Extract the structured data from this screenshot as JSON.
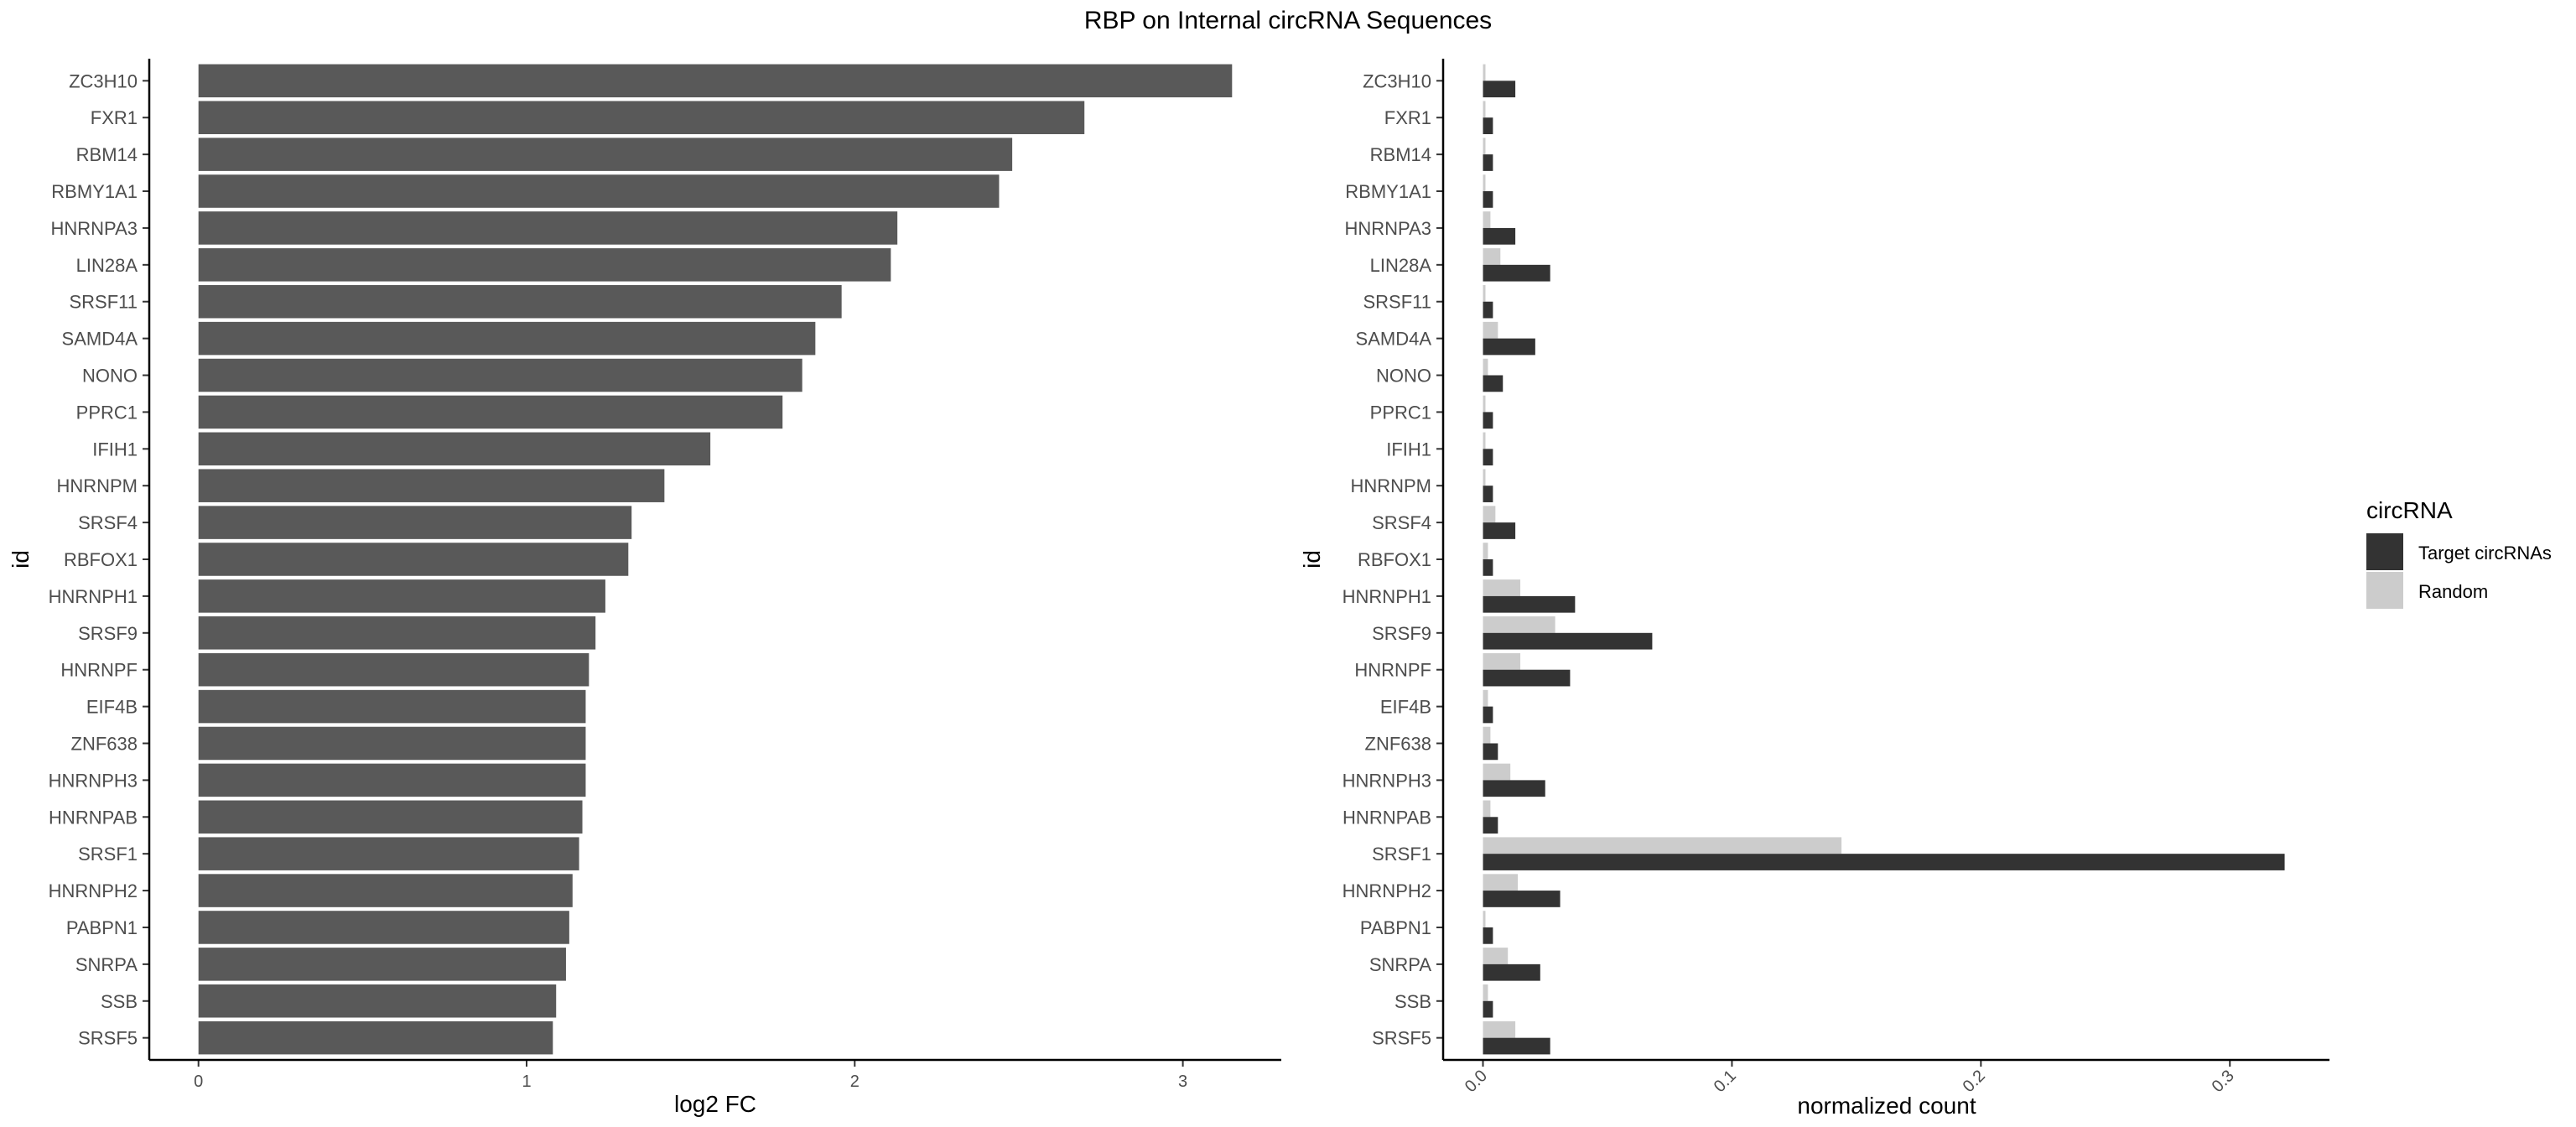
{
  "title": "RBP on Internal circRNA Sequences",
  "chart_data": [
    {
      "type": "bar",
      "orientation": "horizontal",
      "xlabel": "log2 FC",
      "ylabel": "id",
      "xlim": [
        -0.15,
        3.3
      ],
      "xticks": [
        "0",
        "1",
        "2",
        "3"
      ],
      "grid": false,
      "categories": [
        "ZC3H10",
        "FXR1",
        "RBM14",
        "RBMY1A1",
        "HNRNPA3",
        "LIN28A",
        "SRSF11",
        "SAMD4A",
        "NONO",
        "PPRC1",
        "IFIH1",
        "HNRNPM",
        "SRSF4",
        "RBFOX1",
        "HNRNPH1",
        "SRSF9",
        "HNRNPF",
        "EIF4B",
        "ZNF638",
        "HNRNPH3",
        "HNRNPAB",
        "SRSF1",
        "HNRNPH2",
        "PABPN1",
        "SNRPA",
        "SSB",
        "SRSF5"
      ],
      "values": [
        3.15,
        2.7,
        2.48,
        2.44,
        2.13,
        2.11,
        1.96,
        1.88,
        1.84,
        1.78,
        1.56,
        1.42,
        1.32,
        1.31,
        1.24,
        1.21,
        1.19,
        1.18,
        1.18,
        1.18,
        1.17,
        1.16,
        1.14,
        1.13,
        1.12,
        1.09,
        1.08
      ],
      "color": "#595959"
    },
    {
      "type": "bar",
      "orientation": "horizontal",
      "xlabel": "normalized count",
      "ylabel": "id",
      "xlim": [
        -0.016,
        0.34
      ],
      "xticks": [
        "0.0",
        "0.1",
        "0.2",
        "0.3"
      ],
      "grid": false,
      "categories": [
        "ZC3H10",
        "FXR1",
        "RBM14",
        "RBMY1A1",
        "HNRNPA3",
        "LIN28A",
        "SRSF11",
        "SAMD4A",
        "NONO",
        "PPRC1",
        "IFIH1",
        "HNRNPM",
        "SRSF4",
        "RBFOX1",
        "HNRNPH1",
        "SRSF9",
        "HNRNPF",
        "EIF4B",
        "ZNF638",
        "HNRNPH3",
        "HNRNPAB",
        "SRSF1",
        "HNRNPH2",
        "PABPN1",
        "SNRPA",
        "SSB",
        "SRSF5"
      ],
      "legend_title": "circRNA",
      "legend_position": "right",
      "series": [
        {
          "name": "Target circRNAs",
          "color": "#333333",
          "values": [
            0.013,
            0.004,
            0.004,
            0.004,
            0.013,
            0.027,
            0.004,
            0.021,
            0.008,
            0.004,
            0.004,
            0.004,
            0.013,
            0.004,
            0.037,
            0.068,
            0.035,
            0.004,
            0.006,
            0.025,
            0.006,
            0.322,
            0.031,
            0.004,
            0.023,
            0.004,
            0.027
          ]
        },
        {
          "name": "Random",
          "color": "#cccccc",
          "values": [
            0.001,
            0.001,
            0.001,
            0.001,
            0.003,
            0.007,
            0.001,
            0.006,
            0.002,
            0.001,
            0.001,
            0.001,
            0.005,
            0.002,
            0.015,
            0.029,
            0.015,
            0.002,
            0.003,
            0.011,
            0.003,
            0.144,
            0.014,
            0.001,
            0.01,
            0.002,
            0.013
          ]
        }
      ]
    }
  ]
}
